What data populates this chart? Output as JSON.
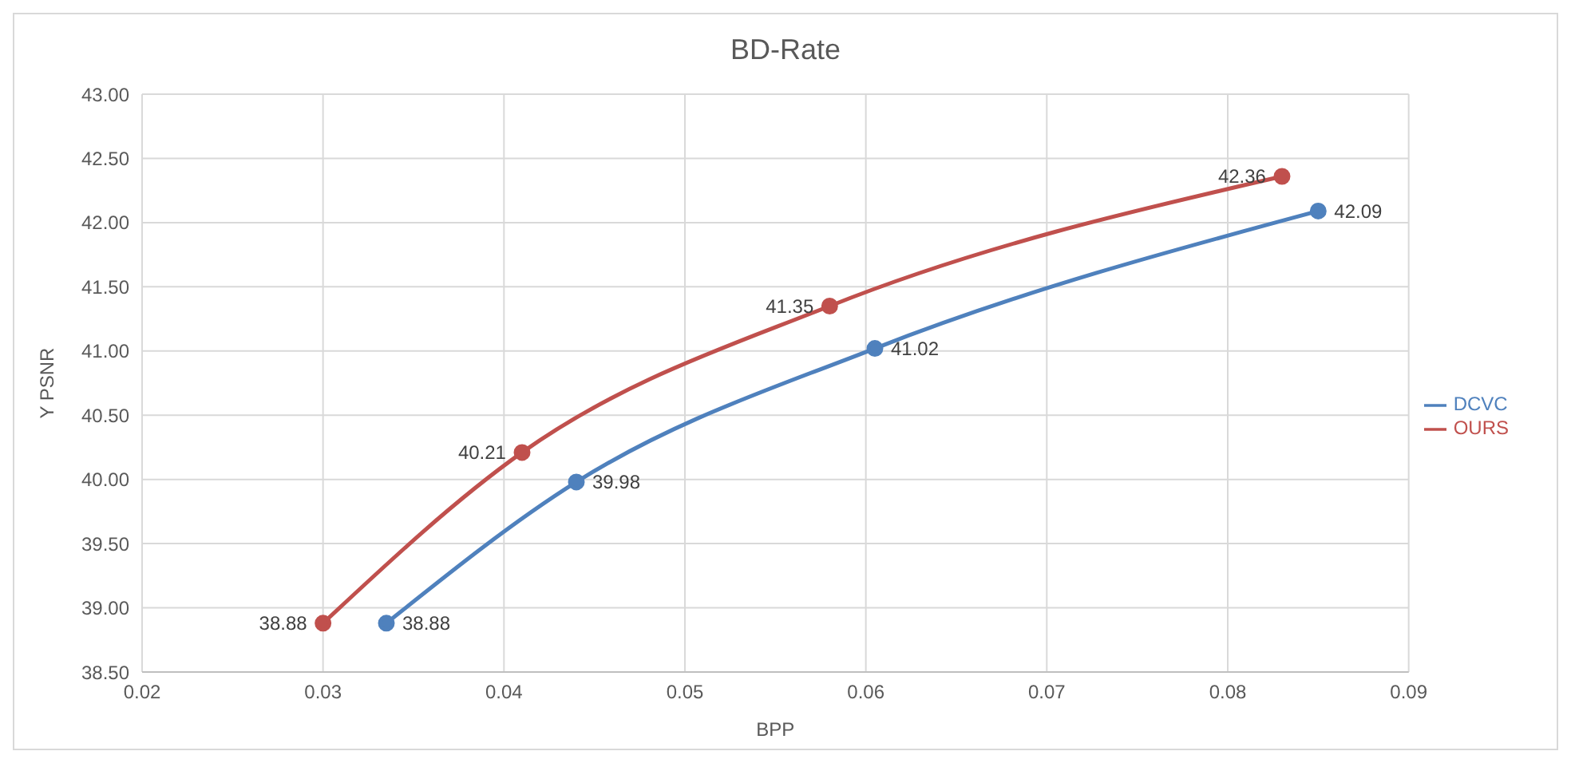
{
  "chart_data": {
    "type": "line",
    "title": "BD-Rate",
    "xlabel": "BPP",
    "ylabel": "Y PSNR",
    "xlim": [
      0.02,
      0.09
    ],
    "xticks": [
      0.02,
      0.03,
      0.04,
      0.05,
      0.06,
      0.07,
      0.08,
      0.09
    ],
    "ylim": [
      38.5,
      43
    ],
    "yticks": [
      {
        "value": 38.5,
        "label": "38.50"
      },
      {
        "value": 39,
        "label": "39.00"
      },
      {
        "value": 39.5,
        "label": "39.50"
      },
      {
        "value": 40,
        "label": "40.00"
      },
      {
        "value": 40.5,
        "label": "40.50"
      },
      {
        "value": 41,
        "label": "41.00"
      },
      {
        "value": 41.5,
        "label": "41.50"
      },
      {
        "value": 42,
        "label": "42.00"
      },
      {
        "value": 42.5,
        "label": "42.50"
      },
      {
        "value": 43,
        "label": "43.00"
      }
    ],
    "series": [
      {
        "name": "OURS",
        "color": "#c0504d",
        "x": [
          0.03,
          0.041,
          0.058,
          0.083
        ],
        "values": [
          38.88,
          40.21,
          41.35,
          42.36
        ]
      },
      {
        "name": "DCVC",
        "color": "#4f81bd",
        "x": [
          0.0335,
          0.044,
          0.0605,
          0.085
        ],
        "values": [
          38.88,
          39.98,
          41.02,
          42.09
        ]
      }
    ],
    "data_labels": true,
    "grid": true,
    "legend": "right",
    "marker": "circle",
    "line_style": "solid"
  }
}
